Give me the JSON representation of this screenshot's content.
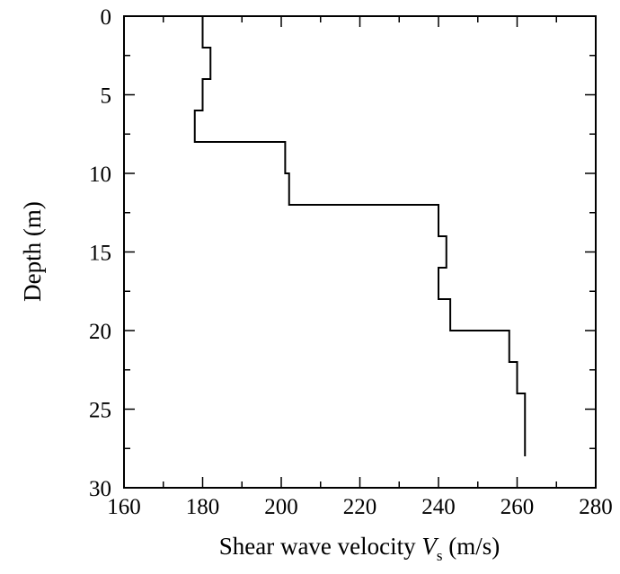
{
  "chart_data": {
    "type": "line",
    "subtype": "step-profile",
    "title": "",
    "xlabel": "Shear  wave velocity ",
    "xlabel_symbol": "V",
    "xlabel_subscript": "s",
    "xlabel_unit": " (m/s)",
    "ylabel": "Depth (m)",
    "xlim": [
      160,
      280
    ],
    "ylim": [
      0,
      30
    ],
    "y_inverted": true,
    "x_ticks": [
      160,
      180,
      200,
      220,
      240,
      260,
      280
    ],
    "y_ticks": [
      0,
      5,
      10,
      15,
      20,
      25,
      30
    ],
    "x_tick_labels": [
      "160",
      "180",
      "200",
      "220",
      "240",
      "260",
      "280"
    ],
    "y_tick_labels": [
      "0",
      "5",
      "10",
      "15",
      "20",
      "25",
      "30"
    ],
    "grid": false,
    "legend": "none",
    "line_color": "#000000",
    "layers": [
      {
        "top": 0,
        "bottom": 2,
        "vs": 180
      },
      {
        "top": 2,
        "bottom": 4,
        "vs": 182
      },
      {
        "top": 4,
        "bottom": 6,
        "vs": 180
      },
      {
        "top": 6,
        "bottom": 8,
        "vs": 178
      },
      {
        "top": 8,
        "bottom": 10,
        "vs": 201
      },
      {
        "top": 10,
        "bottom": 12,
        "vs": 202
      },
      {
        "top": 12,
        "bottom": 14,
        "vs": 240
      },
      {
        "top": 14,
        "bottom": 16,
        "vs": 242
      },
      {
        "top": 16,
        "bottom": 18,
        "vs": 240
      },
      {
        "top": 18,
        "bottom": 20,
        "vs": 243
      },
      {
        "top": 20,
        "bottom": 22,
        "vs": 258
      },
      {
        "top": 22,
        "bottom": 24,
        "vs": 260
      },
      {
        "top": 24,
        "bottom": 28,
        "vs": 262
      }
    ]
  }
}
